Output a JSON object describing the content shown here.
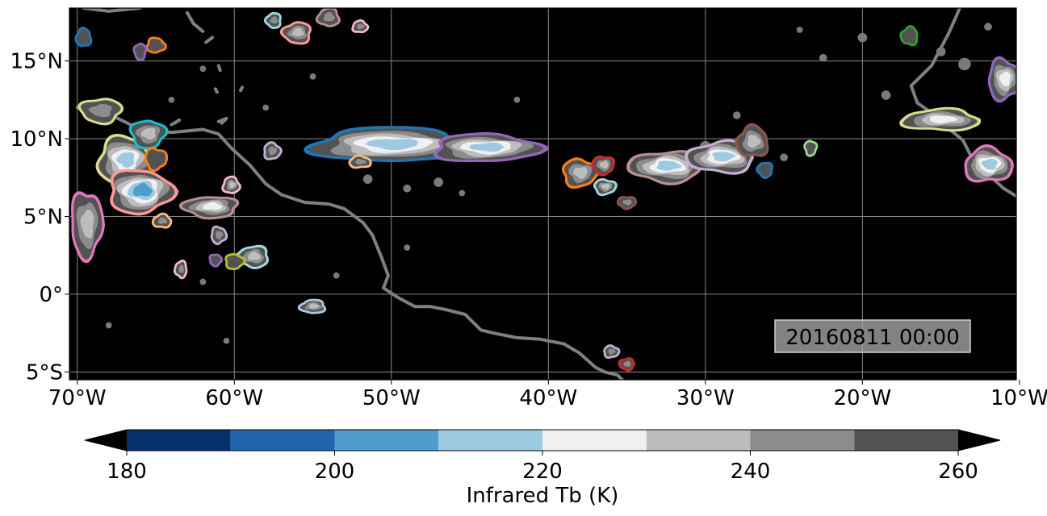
{
  "map": {
    "timestamp": "20160811 00:00",
    "extent_lon": [
      -70.5,
      -10.2
    ],
    "extent_lat": [
      -5.5,
      18.4
    ],
    "lat_ticks": [
      {
        "value": 15,
        "label": "15°N"
      },
      {
        "value": 10,
        "label": "10°N"
      },
      {
        "value": 5,
        "label": "5°N"
      },
      {
        "value": 0,
        "label": "0°"
      },
      {
        "value": -5,
        "label": "5°S"
      }
    ],
    "lon_ticks": [
      {
        "value": -70,
        "label": "70°W"
      },
      {
        "value": -60,
        "label": "60°W"
      },
      {
        "value": -50,
        "label": "50°W"
      },
      {
        "value": -40,
        "label": "40°W"
      },
      {
        "value": -30,
        "label": "30°W"
      },
      {
        "value": -20,
        "label": "20°W"
      },
      {
        "value": -10,
        "label": "10°W"
      }
    ],
    "colors": {
      "background": "#000000",
      "coastline": "#808080",
      "gridline": "#888888"
    }
  },
  "colorbar": {
    "label": "Infrared Tb (K)",
    "min": 180,
    "max": 260,
    "tick_values": [
      180,
      200,
      220,
      240,
      260
    ],
    "tick_labels": [
      "180",
      "200",
      "220",
      "240",
      "260"
    ],
    "bins": [
      {
        "from": 180,
        "to": 190,
        "color": "#08306b"
      },
      {
        "from": 190,
        "to": 200,
        "color": "#2166ac"
      },
      {
        "from": 200,
        "to": 210,
        "color": "#4f9ccf"
      },
      {
        "from": 210,
        "to": 220,
        "color": "#9ecae1"
      },
      {
        "from": 220,
        "to": 230,
        "color": "#f0f0f0"
      },
      {
        "from": 230,
        "to": 240,
        "color": "#bdbdbd"
      },
      {
        "from": 240,
        "to": 250,
        "color": "#8c8c8c"
      },
      {
        "from": 250,
        "to": 260,
        "color": "#525252"
      }
    ],
    "extend_low_color": "#000000",
    "extend_high_color": "#000000"
  },
  "cloud_systems": [
    {
      "lon": -50.0,
      "lat": 9.6,
      "rlon": 4.8,
      "rlat": 1.0,
      "outline": "#1f77b4",
      "tmin": 205
    },
    {
      "lon": -44.0,
      "lat": 9.4,
      "rlon": 3.2,
      "rlat": 0.8,
      "outline": "#9467bd",
      "tmin": 208
    },
    {
      "lon": -38.0,
      "lat": 7.8,
      "rlon": 1.0,
      "rlat": 0.8,
      "outline": "#ff7f0e",
      "tmin": 230
    },
    {
      "lon": -36.5,
      "lat": 8.3,
      "rlon": 0.6,
      "rlat": 0.5,
      "outline": "#d62728",
      "tmin": 225
    },
    {
      "lon": -32.5,
      "lat": 8.2,
      "rlon": 2.2,
      "rlat": 0.9,
      "outline": "#bc8f8f",
      "tmin": 203
    },
    {
      "lon": -29.0,
      "lat": 8.8,
      "rlon": 2.0,
      "rlat": 0.9,
      "outline": "#c5b0d5",
      "tmin": 210
    },
    {
      "lon": -27.0,
      "lat": 9.8,
      "rlon": 0.9,
      "rlat": 0.9,
      "outline": "#8c564b",
      "tmin": 228
    },
    {
      "lon": -67.0,
      "lat": 8.6,
      "rlon": 1.6,
      "rlat": 1.4,
      "outline": "#dbdb8d",
      "tmin": 202
    },
    {
      "lon": -66.0,
      "lat": 6.6,
      "rlon": 1.9,
      "rlat": 1.3,
      "outline": "#ff9896",
      "tmin": 200
    },
    {
      "lon": -65.5,
      "lat": 10.3,
      "rlon": 1.0,
      "rlat": 0.8,
      "outline": "#17becf",
      "tmin": 225
    },
    {
      "lon": -61.5,
      "lat": 5.6,
      "rlon": 1.6,
      "rlat": 0.6,
      "outline": "#bc8f8f",
      "tmin": 215
    },
    {
      "lon": -58.8,
      "lat": 2.4,
      "rlon": 0.9,
      "rlat": 0.6,
      "outline": "#9edae5",
      "tmin": 222
    },
    {
      "lon": -15.0,
      "lat": 11.2,
      "rlon": 2.3,
      "rlat": 0.6,
      "outline": "#dbdb8d",
      "tmin": 218
    },
    {
      "lon": -12.0,
      "lat": 8.3,
      "rlon": 1.4,
      "rlat": 1.0,
      "outline": "#e377c2",
      "tmin": 205
    },
    {
      "lon": -11.0,
      "lat": 13.8,
      "rlon": 0.9,
      "rlat": 1.2,
      "outline": "#9467bd",
      "tmin": 220
    },
    {
      "lon": -69.4,
      "lat": 4.5,
      "rlon": 0.9,
      "rlat": 2.0,
      "outline": "#e377c2",
      "tmin": 225
    },
    {
      "lon": -68.5,
      "lat": 11.8,
      "rlon": 1.2,
      "rlat": 0.7,
      "outline": "#dbdb8d",
      "tmin": 238
    },
    {
      "lon": -56.0,
      "lat": 16.8,
      "rlon": 0.8,
      "rlat": 0.6,
      "outline": "#ff9896",
      "tmin": 222
    },
    {
      "lon": -55.0,
      "lat": -0.8,
      "rlon": 0.7,
      "rlat": 0.35,
      "outline": "#aec7e8",
      "tmin": 228
    },
    {
      "lon": -60.2,
      "lat": 7.0,
      "rlon": 0.45,
      "rlat": 0.45,
      "outline": "#f7b6d2",
      "tmin": 225
    },
    {
      "lon": -57.6,
      "lat": 9.2,
      "rlon": 0.45,
      "rlat": 0.45,
      "outline": "#c5b0d5",
      "tmin": 232
    },
    {
      "lon": -36.4,
      "lat": 6.9,
      "rlon": 0.6,
      "rlat": 0.4,
      "outline": "#9edae5",
      "tmin": 222
    },
    {
      "lon": -35.0,
      "lat": 5.9,
      "rlon": 0.5,
      "rlat": 0.3,
      "outline": "#8c564b",
      "tmin": 240
    },
    {
      "lon": -35.0,
      "lat": -4.5,
      "rlon": 0.4,
      "rlat": 0.3,
      "outline": "#d62728",
      "tmin": 232
    },
    {
      "lon": -17.0,
      "lat": 16.6,
      "rlon": 0.45,
      "rlat": 0.5,
      "outline": "#2ca02c",
      "tmin": 245
    },
    {
      "lon": -69.6,
      "lat": 16.5,
      "rlon": 0.4,
      "rlat": 0.5,
      "outline": "#1f77b4",
      "tmin": 245
    },
    {
      "lon": -65.0,
      "lat": 16.0,
      "rlon": 0.5,
      "rlat": 0.4,
      "outline": "#ff7f0e",
      "tmin": 245
    },
    {
      "lon": -60.0,
      "lat": 2.1,
      "rlon": 0.5,
      "rlat": 0.4,
      "outline": "#bcbd22",
      "tmin": 245
    },
    {
      "lon": -23.3,
      "lat": 9.4,
      "rlon": 0.3,
      "rlat": 0.4,
      "outline": "#98df8a",
      "tmin": 245
    },
    {
      "lon": -26.2,
      "lat": 8.0,
      "rlon": 0.4,
      "rlat": 0.4,
      "outline": "#1f77b4",
      "tmin": 245
    },
    {
      "lon": -63.4,
      "lat": 1.6,
      "rlon": 0.3,
      "rlat": 0.45,
      "outline": "#f7b6d2",
      "tmin": 232
    },
    {
      "lon": -64.6,
      "lat": 4.7,
      "rlon": 0.5,
      "rlat": 0.35,
      "outline": "#ffbb78",
      "tmin": 235
    },
    {
      "lon": -52.0,
      "lat": 8.5,
      "rlon": 0.6,
      "rlat": 0.3,
      "outline": "#ffbb78",
      "tmin": 240
    },
    {
      "lon": -61.0,
      "lat": 3.8,
      "rlon": 0.4,
      "rlat": 0.45,
      "outline": "#c5b0d5",
      "tmin": 240
    },
    {
      "lon": -61.2,
      "lat": 2.2,
      "rlon": 0.3,
      "rlat": 0.3,
      "outline": "#9467bd",
      "tmin": 245
    },
    {
      "lon": -66.0,
      "lat": 15.6,
      "rlon": 0.3,
      "rlat": 0.45,
      "outline": "#9467bd",
      "tmin": 245
    },
    {
      "lon": -57.5,
      "lat": 17.6,
      "rlon": 0.4,
      "rlat": 0.4,
      "outline": "#9edae5",
      "tmin": 235
    },
    {
      "lon": -54.0,
      "lat": 17.8,
      "rlon": 0.6,
      "rlat": 0.5,
      "outline": "#bc8f8f",
      "tmin": 232
    },
    {
      "lon": -52.0,
      "lat": 17.2,
      "rlon": 0.4,
      "rlat": 0.3,
      "outline": "#f7b6d2",
      "tmin": 240
    },
    {
      "lon": -36.0,
      "lat": -3.7,
      "rlon": 0.4,
      "rlat": 0.3,
      "outline": "#c5b0d5",
      "tmin": 240
    },
    {
      "lon": -65.0,
      "lat": 8.7,
      "rlon": 0.6,
      "rlat": 0.6,
      "outline": "#ff7f0e",
      "tmin": 245
    }
  ],
  "gray_blobs": [
    {
      "lon": -47.0,
      "lat": 7.2,
      "r": 0.3
    },
    {
      "lon": -49.0,
      "lat": 6.8,
      "r": 0.25
    },
    {
      "lon": -45.5,
      "lat": 6.5,
      "r": 0.2
    },
    {
      "lon": -51.5,
      "lat": 7.4,
      "r": 0.3
    },
    {
      "lon": -30.0,
      "lat": 9.5,
      "r": 0.35
    },
    {
      "lon": -28.0,
      "lat": 11.5,
      "r": 0.25
    },
    {
      "lon": -25.0,
      "lat": 8.8,
      "r": 0.25
    },
    {
      "lon": -20.0,
      "lat": 16.5,
      "r": 0.3
    },
    {
      "lon": -22.5,
      "lat": 15.2,
      "r": 0.25
    },
    {
      "lon": -18.5,
      "lat": 12.8,
      "r": 0.3
    },
    {
      "lon": -15.0,
      "lat": 15.6,
      "r": 0.3
    },
    {
      "lon": -12.0,
      "lat": 17.2,
      "r": 0.25
    },
    {
      "lon": -13.5,
      "lat": 14.8,
      "r": 0.4
    },
    {
      "lon": -24.0,
      "lat": 17.0,
      "r": 0.2
    },
    {
      "lon": -62.0,
      "lat": 0.8,
      "r": 0.2
    },
    {
      "lon": -60.5,
      "lat": -3.0,
      "r": 0.2
    },
    {
      "lon": -68.0,
      "lat": -2.0,
      "r": 0.2
    },
    {
      "lon": -64.0,
      "lat": 12.5,
      "r": 0.2
    },
    {
      "lon": -58.0,
      "lat": 12.0,
      "r": 0.2
    },
    {
      "lon": -55.0,
      "lat": 14.0,
      "r": 0.2
    },
    {
      "lon": -62.0,
      "lat": 14.5,
      "r": 0.2
    },
    {
      "lon": -49.0,
      "lat": 3.0,
      "r": 0.2
    },
    {
      "lon": -42.0,
      "lat": 12.5,
      "r": 0.2
    },
    {
      "lon": -53.5,
      "lat": 1.2,
      "r": 0.2
    }
  ],
  "coastlines": [
    [
      [
        -70.0,
        12.0
      ],
      [
        -68.0,
        11.6
      ],
      [
        -66.0,
        10.6
      ],
      [
        -64.0,
        10.4
      ],
      [
        -62.0,
        10.6
      ],
      [
        -61.0,
        10.3
      ],
      [
        -60.2,
        9.4
      ],
      [
        -59.0,
        8.3
      ],
      [
        -58.0,
        7.1
      ],
      [
        -57.0,
        6.4
      ],
      [
        -55.5,
        5.9
      ],
      [
        -54.0,
        5.8
      ],
      [
        -53.0,
        5.5
      ],
      [
        -51.8,
        4.6
      ],
      [
        -51.2,
        3.8
      ],
      [
        -50.6,
        2.3
      ],
      [
        -50.2,
        1.2
      ],
      [
        -50.5,
        0.4
      ],
      [
        -49.6,
        -0.2
      ],
      [
        -48.5,
        -0.8
      ],
      [
        -47.5,
        -0.8
      ],
      [
        -46.5,
        -1.0
      ],
      [
        -45.3,
        -1.3
      ],
      [
        -44.3,
        -2.3
      ],
      [
        -43.5,
        -2.5
      ],
      [
        -42.0,
        -2.8
      ],
      [
        -40.5,
        -2.9
      ],
      [
        -39.0,
        -3.2
      ],
      [
        -38.0,
        -3.8
      ],
      [
        -37.0,
        -4.7
      ],
      [
        -36.4,
        -5.0
      ],
      [
        -35.6,
        -5.2
      ],
      [
        -35.2,
        -5.6
      ]
    ],
    [
      [
        -64.0,
        10.9
      ],
      [
        -63.5,
        11.2
      ],
      [
        -63.8,
        11.0
      ]
    ],
    [
      [
        -61.0,
        11.1
      ],
      [
        -60.5,
        11.3
      ],
      [
        -60.8,
        11.0
      ]
    ],
    [
      [
        -69.6,
        18.4
      ],
      [
        -68.0,
        18.2
      ],
      [
        -66.0,
        18.4
      ]
    ],
    [
      [
        -61.8,
        16.2
      ],
      [
        -61.4,
        16.5
      ]
    ],
    [
      [
        -61.0,
        14.7
      ],
      [
        -60.9,
        14.4
      ]
    ],
    [
      [
        -61.2,
        13.2
      ],
      [
        -61.1,
        13.0
      ]
    ],
    [
      [
        -59.6,
        13.1
      ],
      [
        -59.5,
        13.3
      ]
    ],
    [
      [
        -63.0,
        18.1
      ],
      [
        -62.6,
        17.4
      ],
      [
        -62.0,
        16.9
      ]
    ],
    [
      [
        -13.8,
        18.4
      ],
      [
        -14.5,
        16.8
      ],
      [
        -15.6,
        14.7
      ],
      [
        -16.9,
        13.4
      ],
      [
        -16.5,
        12.3
      ],
      [
        -15.5,
        11.6
      ],
      [
        -14.8,
        10.9
      ],
      [
        -13.6,
        9.9
      ],
      [
        -13.1,
        8.9
      ],
      [
        -12.1,
        7.8
      ],
      [
        -11.0,
        6.8
      ],
      [
        -10.2,
        6.3
      ]
    ]
  ]
}
